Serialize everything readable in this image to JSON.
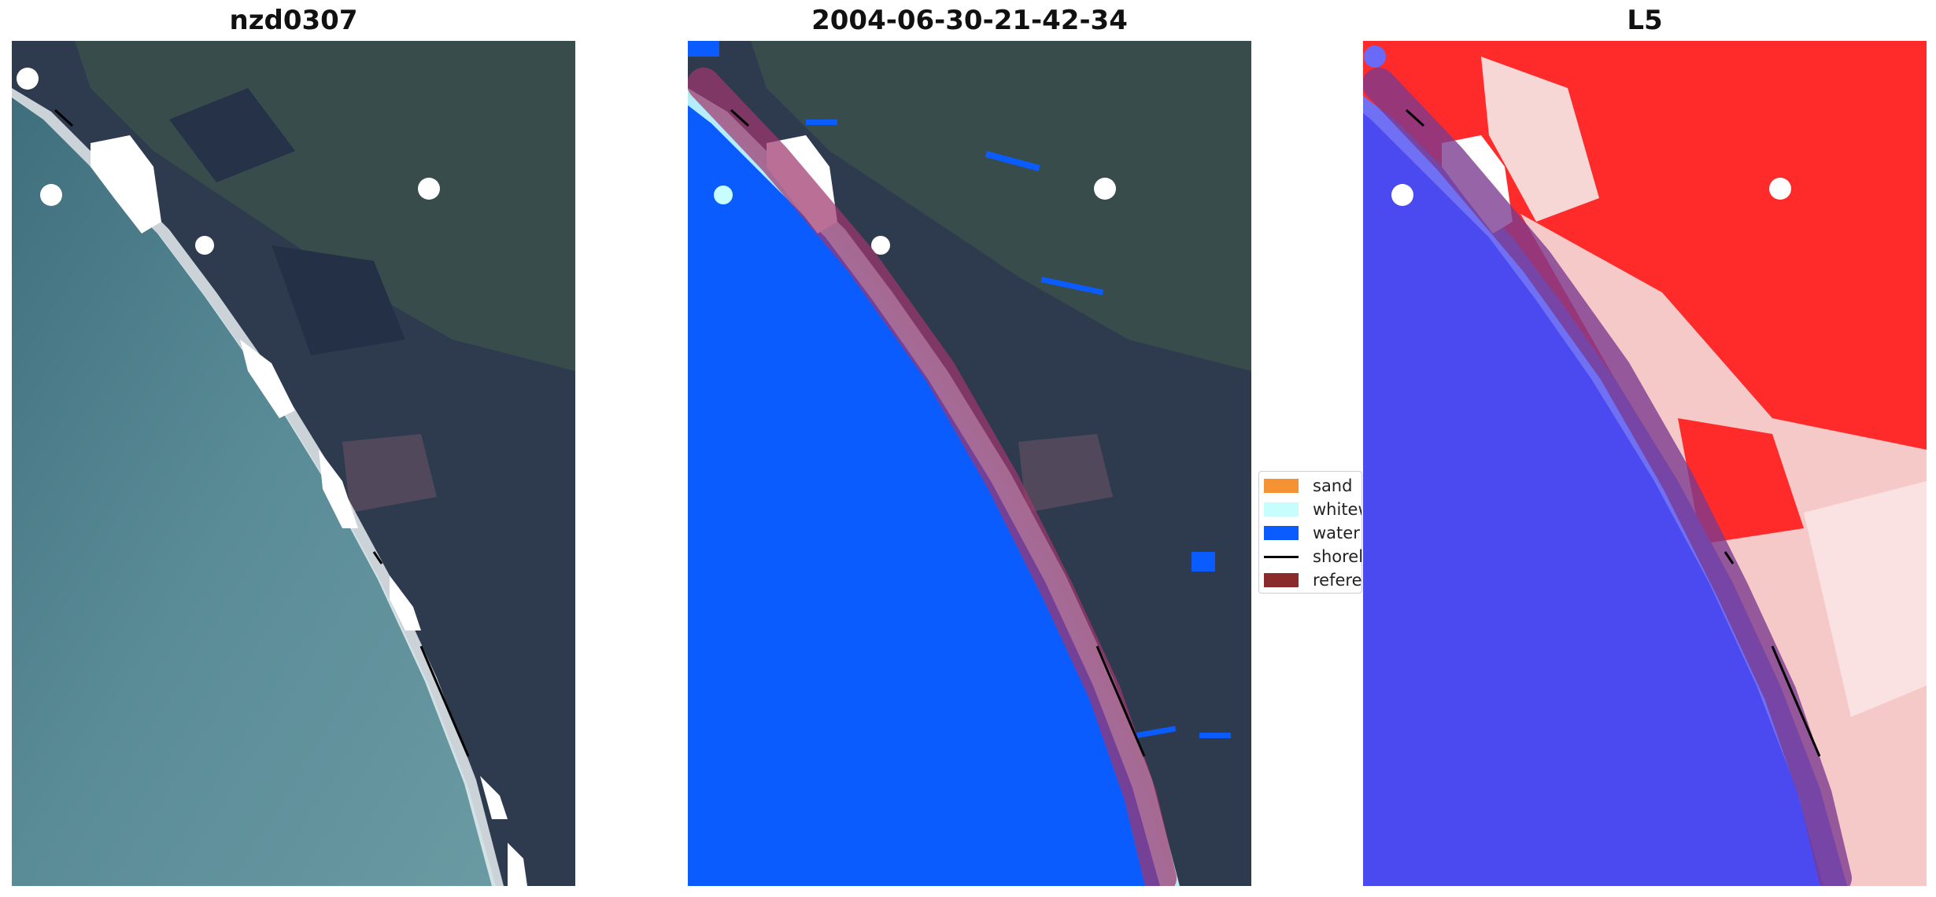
{
  "panels": [
    {
      "title": "nzd0307"
    },
    {
      "title": "2004-06-30-21-42-34"
    },
    {
      "title": "L5"
    }
  ],
  "legend": {
    "items": [
      {
        "label": "sand",
        "color": "#f59234"
      },
      {
        "label": "whitewater",
        "color": "#c8fdfd"
      },
      {
        "label": "water",
        "color": "#0a5cff"
      },
      {
        "label": "shoreline",
        "color": "#000000"
      },
      {
        "label": "reference",
        "color": "#8b2a2a"
      }
    ]
  },
  "colors": {
    "land": "#2d3a4c",
    "ocean": "#4f7f8c",
    "water_class": "#0a5cff",
    "index_land": "#ff2a2a",
    "index_water": "#4444ff",
    "buffer": "#a0386e"
  }
}
